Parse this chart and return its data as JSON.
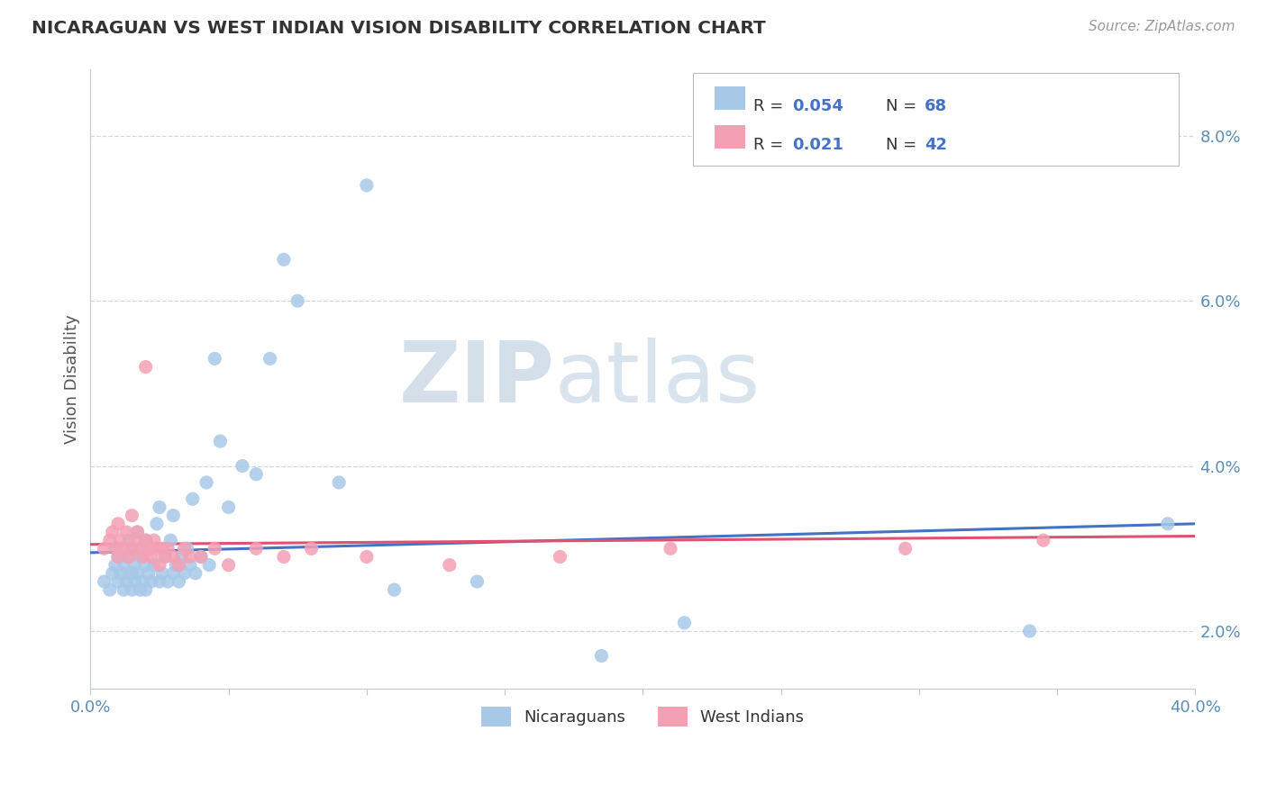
{
  "title": "NICARAGUAN VS WEST INDIAN VISION DISABILITY CORRELATION CHART",
  "source": "Source: ZipAtlas.com",
  "ylabel": "Vision Disability",
  "xmin": 0.0,
  "xmax": 0.4,
  "ymin": 1.3,
  "ymax": 8.8,
  "blue_R": 0.054,
  "blue_N": 68,
  "pink_R": 0.021,
  "pink_N": 42,
  "blue_color": "#A8C8E8",
  "pink_color": "#F4A0B4",
  "blue_line_color": "#4472C4",
  "pink_line_color": "#E05070",
  "watermark_zip": "ZIP",
  "watermark_atlas": "atlas",
  "blue_trend_x0": 0.0,
  "blue_trend_y0": 2.95,
  "blue_trend_x1": 0.4,
  "blue_trend_y1": 3.3,
  "pink_trend_x0": 0.0,
  "pink_trend_y0": 3.05,
  "pink_trend_x1": 0.4,
  "pink_trend_y1": 3.15,
  "blue_scatter_x": [
    0.005,
    0.007,
    0.008,
    0.009,
    0.01,
    0.01,
    0.01,
    0.011,
    0.012,
    0.012,
    0.013,
    0.013,
    0.014,
    0.014,
    0.015,
    0.015,
    0.015,
    0.016,
    0.016,
    0.017,
    0.017,
    0.018,
    0.018,
    0.019,
    0.019,
    0.02,
    0.02,
    0.02,
    0.021,
    0.022,
    0.022,
    0.023,
    0.024,
    0.025,
    0.025,
    0.026,
    0.027,
    0.028,
    0.029,
    0.03,
    0.03,
    0.031,
    0.032,
    0.033,
    0.034,
    0.035,
    0.036,
    0.037,
    0.038,
    0.04,
    0.042,
    0.043,
    0.045,
    0.047,
    0.05,
    0.055,
    0.06,
    0.065,
    0.07,
    0.075,
    0.09,
    0.1,
    0.11,
    0.14,
    0.185,
    0.215,
    0.34,
    0.39
  ],
  "blue_scatter_y": [
    2.6,
    2.5,
    2.7,
    2.8,
    2.9,
    3.0,
    2.6,
    2.7,
    2.5,
    2.8,
    2.6,
    2.9,
    2.7,
    3.1,
    2.5,
    2.7,
    3.0,
    2.6,
    2.8,
    2.7,
    3.2,
    2.5,
    2.9,
    2.6,
    3.0,
    2.5,
    2.8,
    3.1,
    2.7,
    2.6,
    3.0,
    2.8,
    3.3,
    2.6,
    3.5,
    2.7,
    2.9,
    2.6,
    3.1,
    2.7,
    3.4,
    2.8,
    2.6,
    2.9,
    2.7,
    3.0,
    2.8,
    3.6,
    2.7,
    2.9,
    3.8,
    2.8,
    5.3,
    4.3,
    3.5,
    4.0,
    3.9,
    5.3,
    6.5,
    6.0,
    3.8,
    7.4,
    2.5,
    2.6,
    1.7,
    2.1,
    2.0,
    3.3
  ],
  "pink_scatter_x": [
    0.005,
    0.007,
    0.008,
    0.009,
    0.01,
    0.01,
    0.011,
    0.012,
    0.013,
    0.014,
    0.015,
    0.015,
    0.016,
    0.017,
    0.018,
    0.019,
    0.02,
    0.02,
    0.021,
    0.022,
    0.023,
    0.024,
    0.025,
    0.026,
    0.027,
    0.028,
    0.03,
    0.032,
    0.034,
    0.036,
    0.04,
    0.045,
    0.05,
    0.06,
    0.07,
    0.08,
    0.1,
    0.13,
    0.17,
    0.21,
    0.295,
    0.345
  ],
  "pink_scatter_y": [
    3.0,
    3.1,
    3.2,
    3.0,
    2.9,
    3.3,
    3.1,
    3.0,
    3.2,
    2.9,
    3.0,
    3.4,
    3.1,
    3.2,
    3.0,
    2.9,
    3.1,
    5.2,
    3.0,
    2.9,
    3.1,
    3.0,
    2.8,
    3.0,
    2.9,
    3.0,
    2.9,
    2.8,
    3.0,
    2.9,
    2.9,
    3.0,
    2.8,
    3.0,
    2.9,
    3.0,
    2.9,
    2.8,
    2.9,
    3.0,
    3.0,
    3.1
  ]
}
